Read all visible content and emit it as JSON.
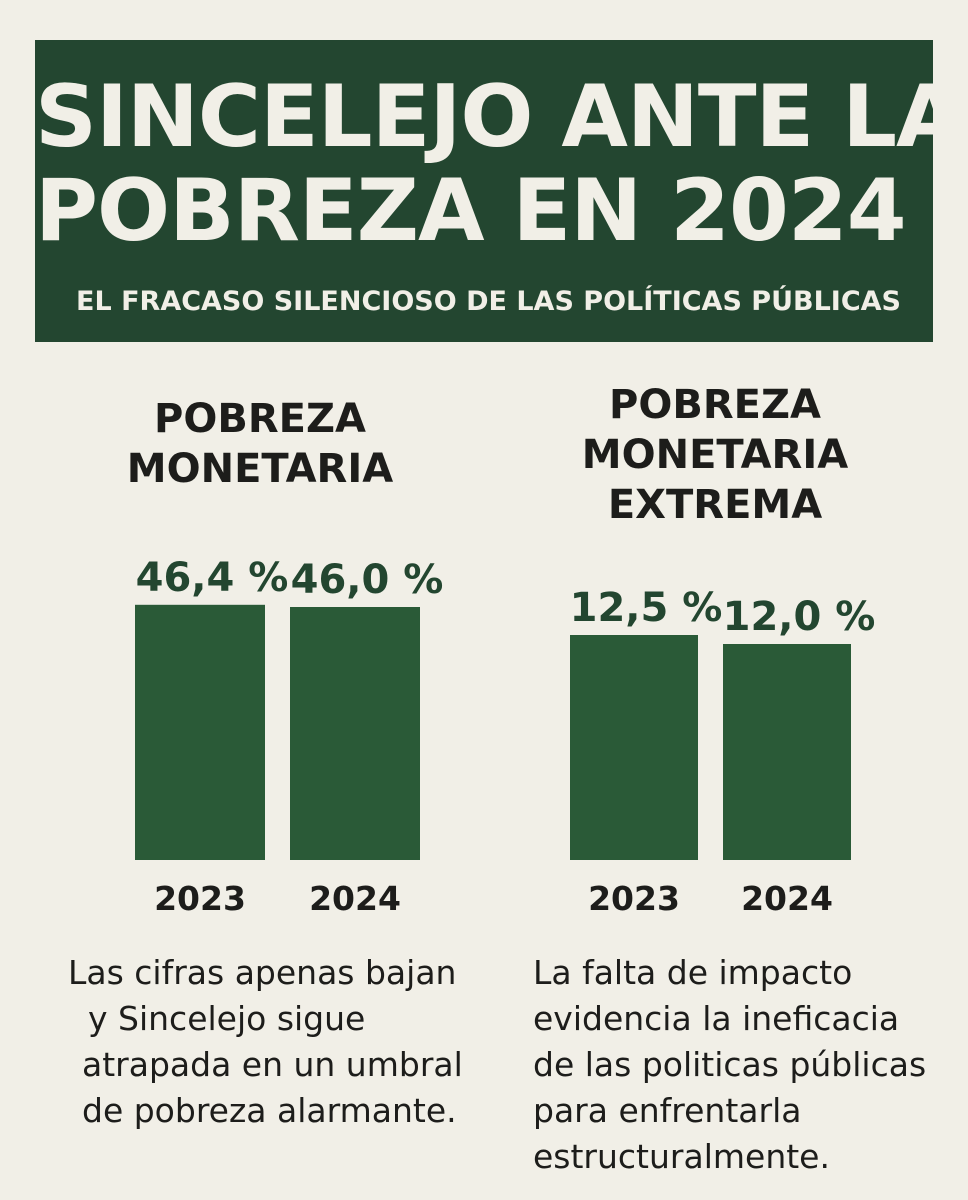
{
  "header": {
    "title_line1": "SINCELEJO ANTE LA",
    "title_line2": "POBREZA EN 2024",
    "subtitle": "EL FRACASO SILENCIOSO DE LAS POLÍTICAS PÚBLICAS"
  },
  "chart_data": [
    {
      "type": "bar",
      "title": "POBREZA MONETARIA",
      "title_lines": [
        "POBREZA",
        "MONETARIA"
      ],
      "categories": [
        "2023",
        "2024"
      ],
      "values": [
        46.4,
        46.0
      ],
      "value_labels": [
        "46,4 %",
        "46,0 %"
      ],
      "bar_color": "#2a5a37",
      "caption_lines": [
        "Las cifras apenas bajan",
        "y Sincelejo sigue",
        "atrapada en un umbral",
        "de pobreza alarmante."
      ]
    },
    {
      "type": "bar",
      "title": "POBREZA MONETARIA EXTREMA",
      "title_lines": [
        "POBREZA",
        "MONETARIA",
        "EXTREMA"
      ],
      "categories": [
        "2023",
        "2024"
      ],
      "values": [
        12.5,
        12.0
      ],
      "value_labels": [
        "12,5 %",
        "12,0 %"
      ],
      "bar_color": "#2a5a37",
      "caption_lines": [
        "La falta de impacto",
        "evidencia la ineficacia",
        "de las politicas públicas",
        "para enfrentarla",
        "estructuralmente."
      ]
    }
  ],
  "colors": {
    "background": "#f1efe7",
    "banner": "#234630",
    "bar": "#2a5a37",
    "text": "#1d1d1b"
  }
}
